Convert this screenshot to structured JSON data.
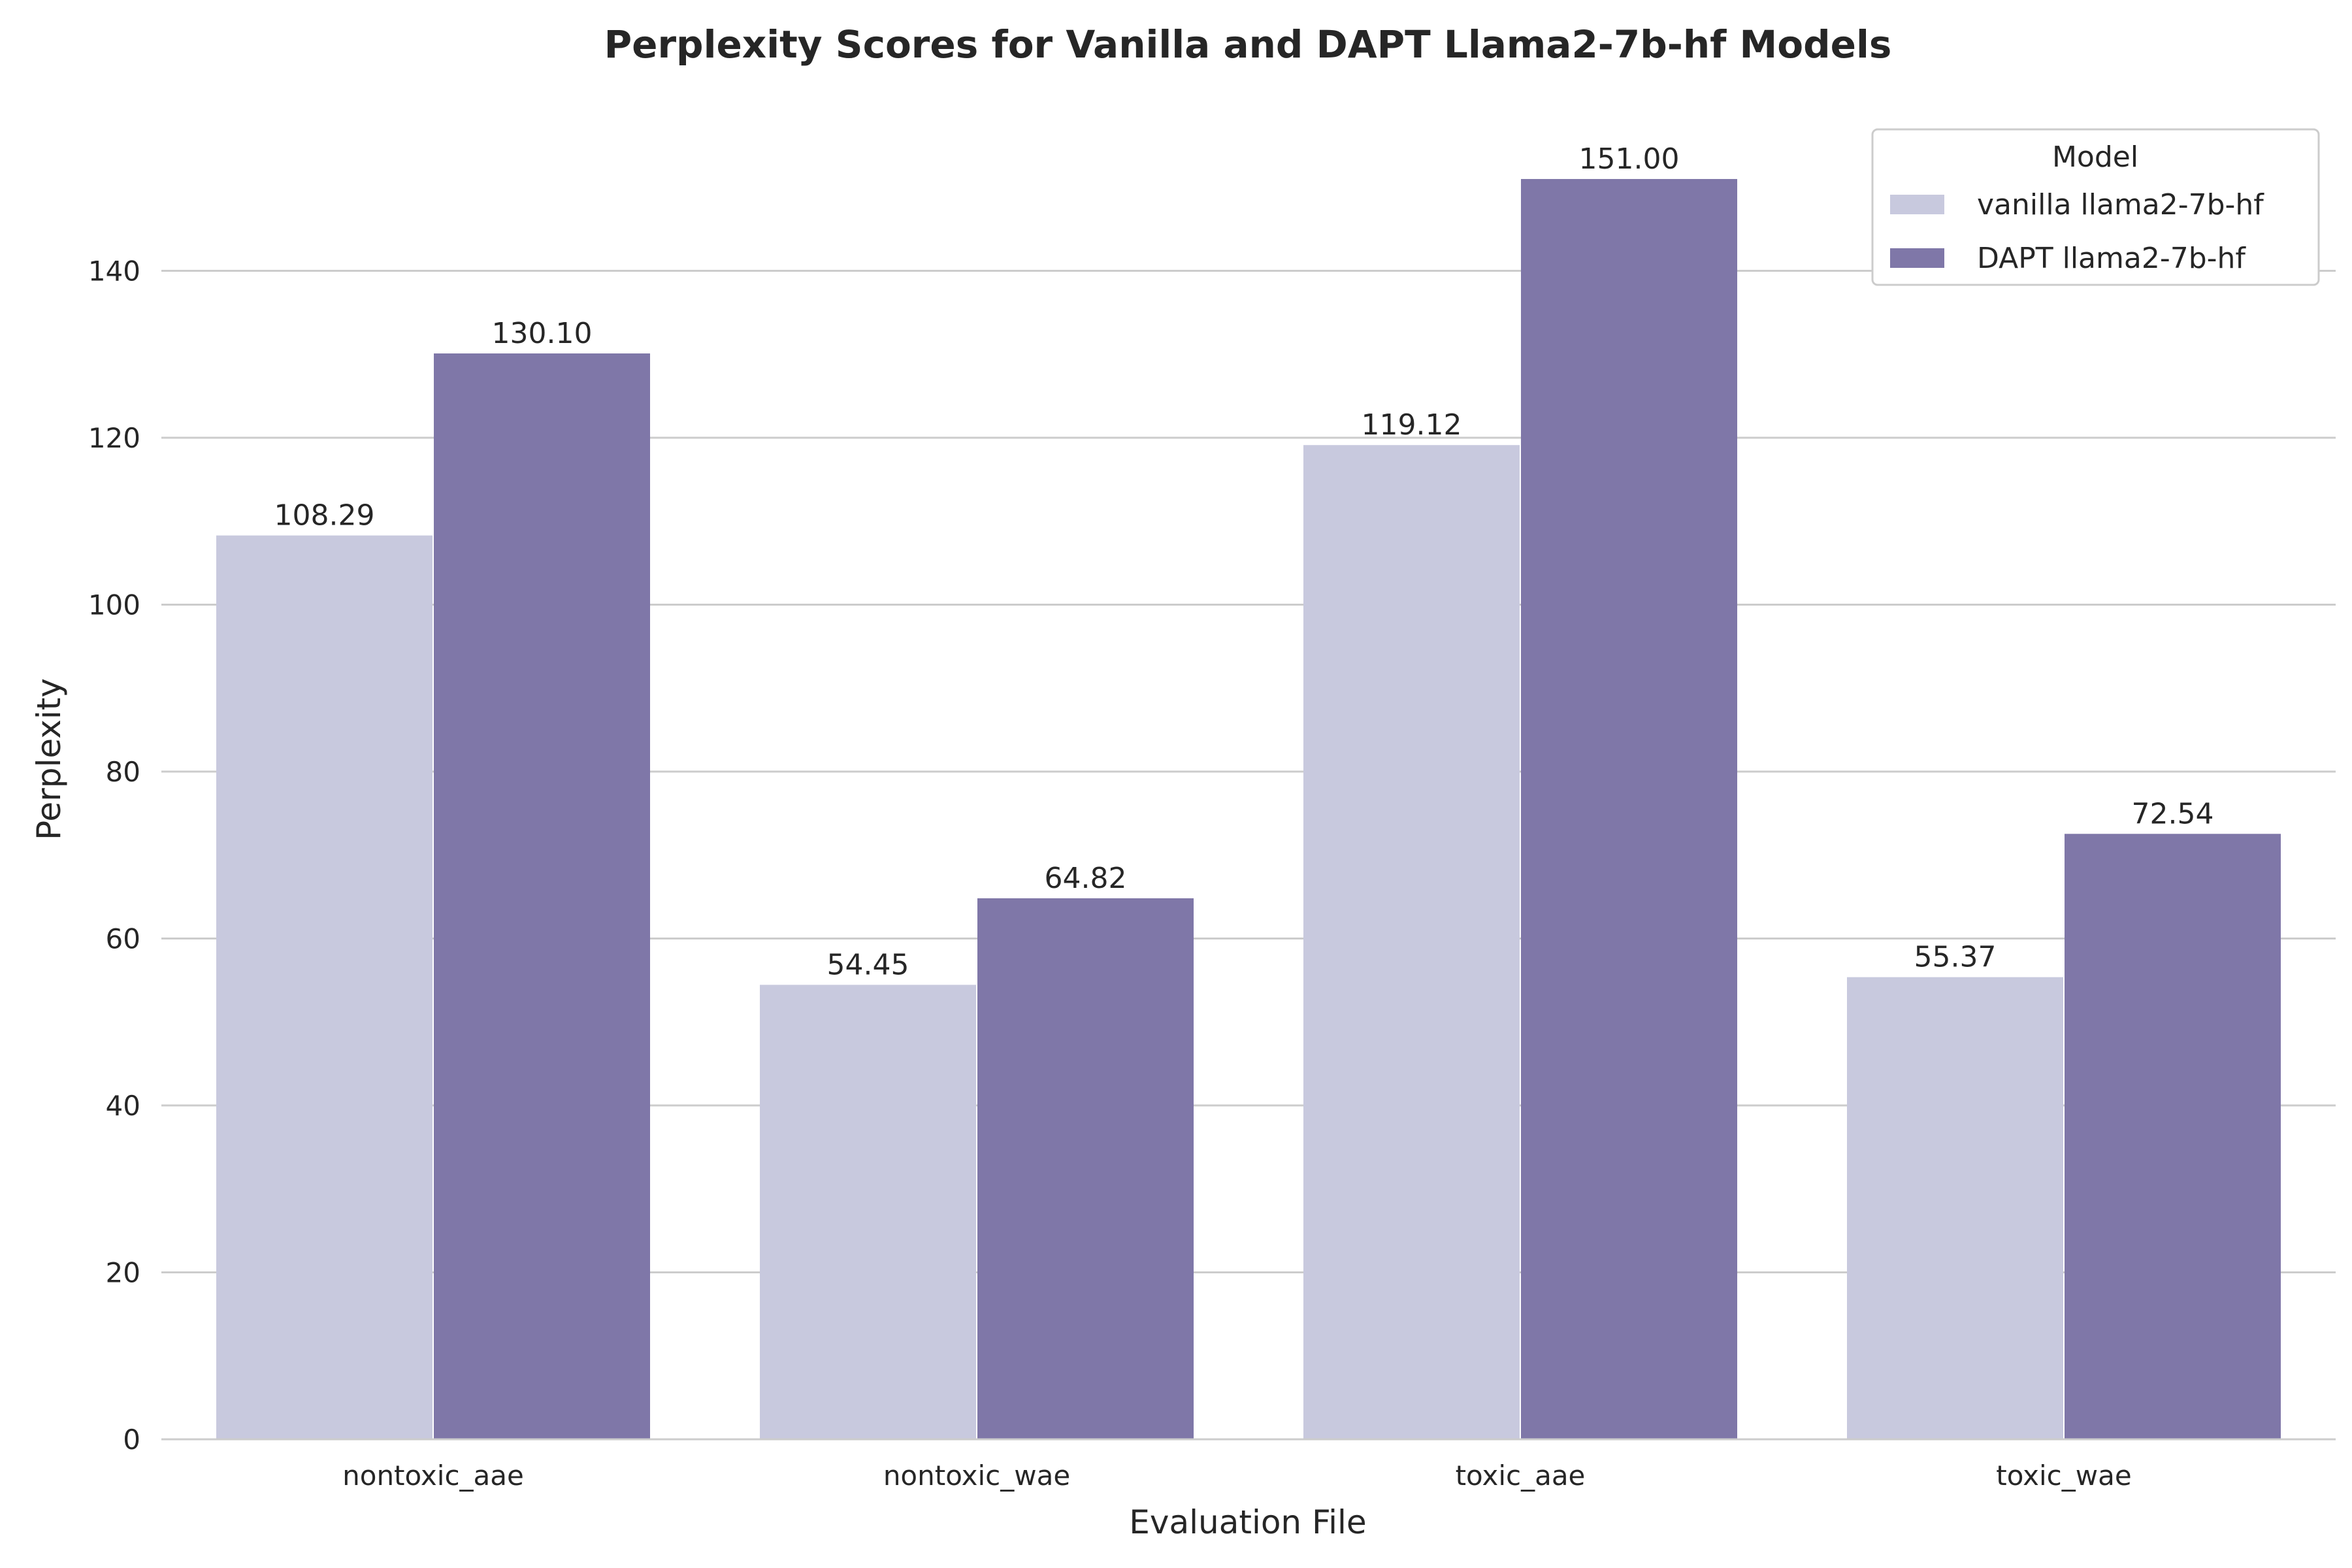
{
  "chart_data": {
    "type": "bar",
    "title": "Perplexity Scores for Vanilla and DAPT Llama2-7b-hf Models",
    "xlabel": "Evaluation File",
    "ylabel": "Perplexity",
    "categories": [
      "nontoxic_aae",
      "nontoxic_wae",
      "toxic_aae",
      "toxic_wae"
    ],
    "series": [
      {
        "name": "vanilla llama2-7b-hf",
        "color": "#c8c9de",
        "values": [
          108.29,
          54.45,
          119.12,
          55.37
        ],
        "labels": [
          "108.29",
          "54.45",
          "119.12",
          "55.37"
        ]
      },
      {
        "name": "DAPT llama2-7b-hf",
        "color": "#7f77a8",
        "values": [
          130.1,
          64.82,
          151.0,
          72.54
        ],
        "labels": [
          "130.10",
          "64.82",
          "151.00",
          "72.54"
        ]
      }
    ],
    "ylim": [
      0,
      157
    ],
    "yticks": [
      0,
      20,
      40,
      60,
      80,
      100,
      120,
      140
    ],
    "grid": true,
    "legend": {
      "title": "Model",
      "placement": "top-right"
    }
  }
}
